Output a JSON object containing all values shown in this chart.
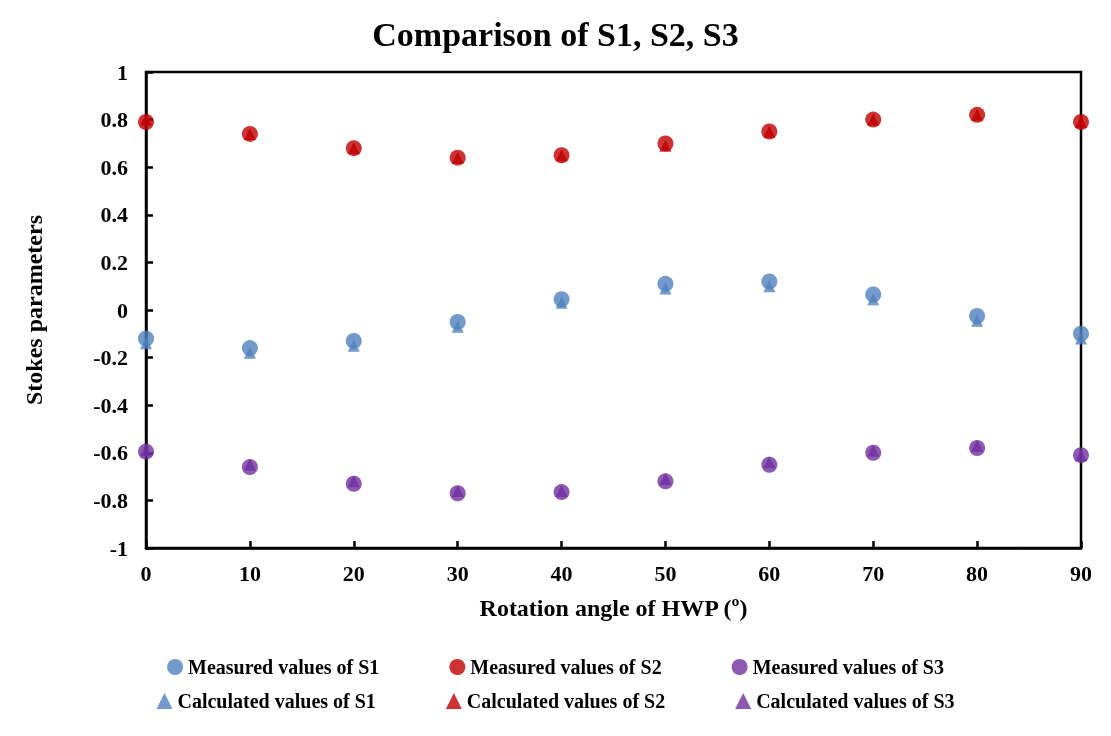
{
  "chart_data": {
    "type": "scatter",
    "title": "Comparison of S1, S2, S3",
    "xlabel": "Rotation angle of HWP (º)",
    "ylabel": "Stokes parameters",
    "x": [
      0,
      10,
      20,
      30,
      40,
      50,
      60,
      70,
      80,
      90
    ],
    "xlim": [
      0,
      90
    ],
    "xticks": [
      0,
      10,
      20,
      30,
      40,
      50,
      60,
      70,
      80,
      90
    ],
    "ylim": [
      -1,
      1
    ],
    "yticks": [
      -1,
      -0.8,
      -0.6,
      -0.4,
      -0.2,
      0,
      0.2,
      0.4,
      0.6,
      0.8,
      1
    ],
    "grid": false,
    "legend": "bottom",
    "series": [
      {
        "name": "Measured values of S1",
        "color": "#4f81bd",
        "marker": "circle",
        "values": [
          -0.12,
          -0.16,
          -0.13,
          -0.05,
          0.045,
          0.11,
          0.12,
          0.065,
          -0.025,
          -0.1
        ]
      },
      {
        "name": "Measured values of S2",
        "color": "#c00000",
        "marker": "circle",
        "values": [
          0.79,
          0.74,
          0.68,
          0.64,
          0.65,
          0.7,
          0.75,
          0.8,
          0.82,
          0.79
        ]
      },
      {
        "name": "Measured values of S3",
        "color": "#7030a0",
        "marker": "circle",
        "values": [
          -0.595,
          -0.66,
          -0.73,
          -0.77,
          -0.765,
          -0.72,
          -0.65,
          -0.6,
          -0.58,
          -0.61
        ]
      },
      {
        "name": "Calculated values of S1",
        "color": "#4f81bd",
        "marker": "triangle",
        "values": [
          -0.14,
          -0.18,
          -0.15,
          -0.07,
          0.03,
          0.09,
          0.1,
          0.045,
          -0.045,
          -0.12
        ]
      },
      {
        "name": "Calculated values of S2",
        "color": "#c00000",
        "marker": "triangle",
        "values": [
          0.8,
          0.74,
          0.68,
          0.64,
          0.65,
          0.69,
          0.75,
          0.8,
          0.82,
          0.79
        ]
      },
      {
        "name": "Calculated values of S3",
        "color": "#7030a0",
        "marker": "triangle",
        "values": [
          -0.59,
          -0.65,
          -0.72,
          -0.76,
          -0.76,
          -0.71,
          -0.64,
          -0.59,
          -0.57,
          -0.61
        ]
      }
    ]
  }
}
